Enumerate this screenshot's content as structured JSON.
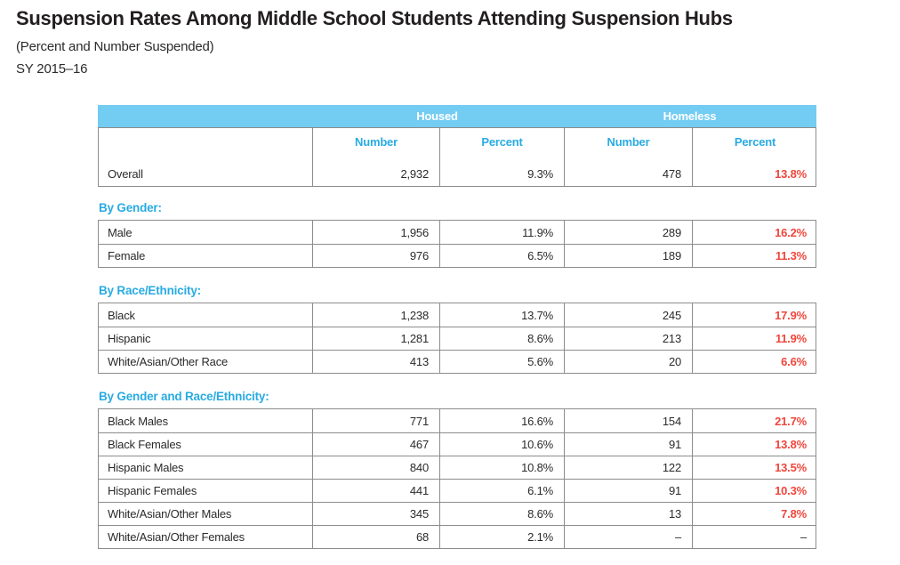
{
  "colors": {
    "accent_blue": "#29ABE2",
    "band_blue": "#73CCF2",
    "alert_red": "#F0463C",
    "border_gray": "#8C8C8C",
    "text_dark": "#2B2B2B"
  },
  "chart_data": {
    "type": "table",
    "title": "Suspension Rates Among Middle School Students Attending Suspension Hubs",
    "subtitle": "(Percent and Number Suspended)",
    "period": "SY 2015–16",
    "group_headers": [
      "Housed",
      "Homeless"
    ],
    "column_headers": [
      "Number",
      "Percent",
      "Number",
      "Percent"
    ],
    "overall": {
      "label": "Overall",
      "values": [
        "2,932",
        "9.3%",
        "478",
        "13.8%"
      ]
    },
    "sections": [
      {
        "heading": "By Gender:",
        "rows": [
          {
            "label": "Male",
            "values": [
              "1,956",
              "11.9%",
              "289",
              "16.2%"
            ]
          },
          {
            "label": "Female",
            "values": [
              "976",
              "6.5%",
              "189",
              "11.3%"
            ]
          }
        ]
      },
      {
        "heading": "By Race/Ethnicity:",
        "rows": [
          {
            "label": "Black",
            "values": [
              "1,238",
              "13.7%",
              "245",
              "17.9%"
            ]
          },
          {
            "label": "Hispanic",
            "values": [
              "1,281",
              "8.6%",
              "213",
              "11.9%"
            ]
          },
          {
            "label": "White/Asian/Other Race",
            "values": [
              "413",
              "5.6%",
              "20",
              "6.6%"
            ]
          }
        ]
      },
      {
        "heading": "By Gender and Race/Ethnicity:",
        "rows": [
          {
            "label": "Black Males",
            "values": [
              "771",
              "16.6%",
              "154",
              "21.7%"
            ]
          },
          {
            "label": "Black Females",
            "values": [
              "467",
              "10.6%",
              "91",
              "13.8%"
            ]
          },
          {
            "label": "Hispanic Males",
            "values": [
              "840",
              "10.8%",
              "122",
              "13.5%"
            ]
          },
          {
            "label": "Hispanic Females",
            "values": [
              "441",
              "6.1%",
              "91",
              "10.3%"
            ]
          },
          {
            "label": "White/Asian/Other Males",
            "values": [
              "345",
              "8.6%",
              "13",
              "7.8%"
            ]
          },
          {
            "label": "White/Asian/Other Females",
            "values": [
              "68",
              "2.1%",
              "–",
              "–"
            ]
          }
        ]
      }
    ]
  }
}
